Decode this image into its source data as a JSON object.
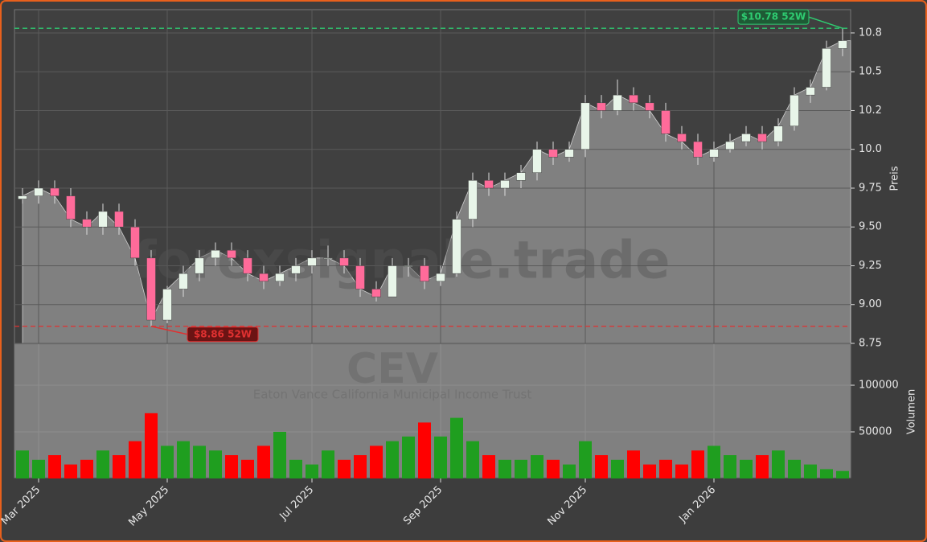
{
  "chart_data": {
    "type": "candlestick",
    "categories": [
      null,
      "Mar 2025",
      null,
      null,
      null,
      null,
      null,
      null,
      null,
      "May 2025",
      null,
      null,
      null,
      null,
      null,
      null,
      null,
      null,
      "Jul 2025",
      null,
      null,
      null,
      null,
      null,
      null,
      null,
      "Sep 2025",
      null,
      null,
      null,
      null,
      null,
      null,
      null,
      null,
      "Nov 2025",
      null,
      null,
      null,
      null,
      null,
      null,
      null,
      "Jan 2026",
      null,
      null,
      null,
      null,
      null,
      null,
      null,
      null
    ],
    "open": [
      9.68,
      9.7,
      9.75,
      9.7,
      9.55,
      9.5,
      9.6,
      9.5,
      9.3,
      8.9,
      9.1,
      9.2,
      9.3,
      9.35,
      9.3,
      9.2,
      9.15,
      9.2,
      9.25,
      9.3,
      9.3,
      9.25,
      9.1,
      9.05,
      9.25,
      9.25,
      9.15,
      9.2,
      9.55,
      9.8,
      9.75,
      9.8,
      9.85,
      10.0,
      9.95,
      10.0,
      10.3,
      10.25,
      10.35,
      10.3,
      10.25,
      10.1,
      10.05,
      9.95,
      10.0,
      10.05,
      10.1,
      10.05,
      10.15,
      10.35,
      10.4,
      10.65
    ],
    "high": [
      9.75,
      9.8,
      9.8,
      9.75,
      9.6,
      9.65,
      9.65,
      9.55,
      9.35,
      9.12,
      9.25,
      9.35,
      9.4,
      9.4,
      9.35,
      9.25,
      9.25,
      9.3,
      9.35,
      9.38,
      9.35,
      9.3,
      9.15,
      9.3,
      9.3,
      9.3,
      9.25,
      9.6,
      9.85,
      9.85,
      9.85,
      9.9,
      10.05,
      10.05,
      10.05,
      10.35,
      10.35,
      10.45,
      10.4,
      10.35,
      10.3,
      10.15,
      10.1,
      10.05,
      10.1,
      10.15,
      10.15,
      10.2,
      10.4,
      10.45,
      10.7,
      10.78
    ],
    "low": [
      9.65,
      9.65,
      9.65,
      9.5,
      9.45,
      9.45,
      9.45,
      9.25,
      8.86,
      8.88,
      9.05,
      9.15,
      9.25,
      9.25,
      9.15,
      9.1,
      9.12,
      9.15,
      9.2,
      9.25,
      9.2,
      9.05,
      9.02,
      9.05,
      9.18,
      9.1,
      9.12,
      9.18,
      9.5,
      9.7,
      9.7,
      9.75,
      9.8,
      9.9,
      9.92,
      9.95,
      10.2,
      10.22,
      10.25,
      10.2,
      10.05,
      10.0,
      9.9,
      9.92,
      9.98,
      10.02,
      10.0,
      10.02,
      10.12,
      10.3,
      10.38,
      10.6
    ],
    "close": [
      9.7,
      9.75,
      9.7,
      9.55,
      9.5,
      9.6,
      9.5,
      9.3,
      8.9,
      9.1,
      9.2,
      9.3,
      9.35,
      9.3,
      9.2,
      9.15,
      9.2,
      9.25,
      9.3,
      9.3,
      9.25,
      9.1,
      9.05,
      9.25,
      9.25,
      9.15,
      9.2,
      9.55,
      9.8,
      9.75,
      9.8,
      9.85,
      10.0,
      9.95,
      10.0,
      10.3,
      10.25,
      10.35,
      10.3,
      10.25,
      10.1,
      10.05,
      9.95,
      10.0,
      10.05,
      10.1,
      10.05,
      10.15,
      10.35,
      10.4,
      10.65,
      10.7
    ],
    "up_color": "#e8f5e9",
    "down_color": "#ff6b9a",
    "area_color": "#808080",
    "ylim": [
      8.75,
      10.9
    ],
    "yticks": [
      8.75,
      {
        "value": 9,
        "label": "9.00"
      },
      9.25,
      {
        "value": 9.5,
        "label": "9.50"
      },
      9.75,
      {
        "value": 10,
        "label": "10.0"
      },
      {
        "value": 10.25,
        "label": "10.2"
      },
      {
        "value": 10.5,
        "label": "10.5"
      },
      {
        "value": 10.75,
        "label": "10.8"
      }
    ],
    "ylabel": "Preis",
    "grid": true,
    "hlines": [
      {
        "value": 10.78,
        "label": "$10.78 52W",
        "color": "#2ecc71"
      },
      {
        "value": 8.86,
        "label": "$8.86 52W",
        "color": "#e03131"
      }
    ],
    "volume": {
      "values": [
        30000,
        20000,
        25000,
        15000,
        20000,
        30000,
        25000,
        40000,
        70000,
        35000,
        40000,
        35000,
        30000,
        25000,
        20000,
        35000,
        50000,
        20000,
        15000,
        30000,
        20000,
        25000,
        35000,
        40000,
        45000,
        60000,
        45000,
        65000,
        40000,
        25000,
        20000,
        20000,
        25000,
        20000,
        15000,
        40000,
        25000,
        20000,
        30000,
        15000,
        20000,
        15000,
        30000,
        35000,
        25000,
        20000,
        25000,
        30000,
        20000,
        15000,
        10000,
        8000
      ],
      "up_color": "#1f9e1f",
      "down_color": "#ff0000",
      "ylim": [
        0,
        144000
      ],
      "yticks": [
        50000,
        100000
      ],
      "ylabel": "Volumen"
    },
    "watermark": "forexsignale.trade",
    "symbol": "CEV",
    "subtitle": "Eaton Vance California Municipal Income Trust"
  }
}
